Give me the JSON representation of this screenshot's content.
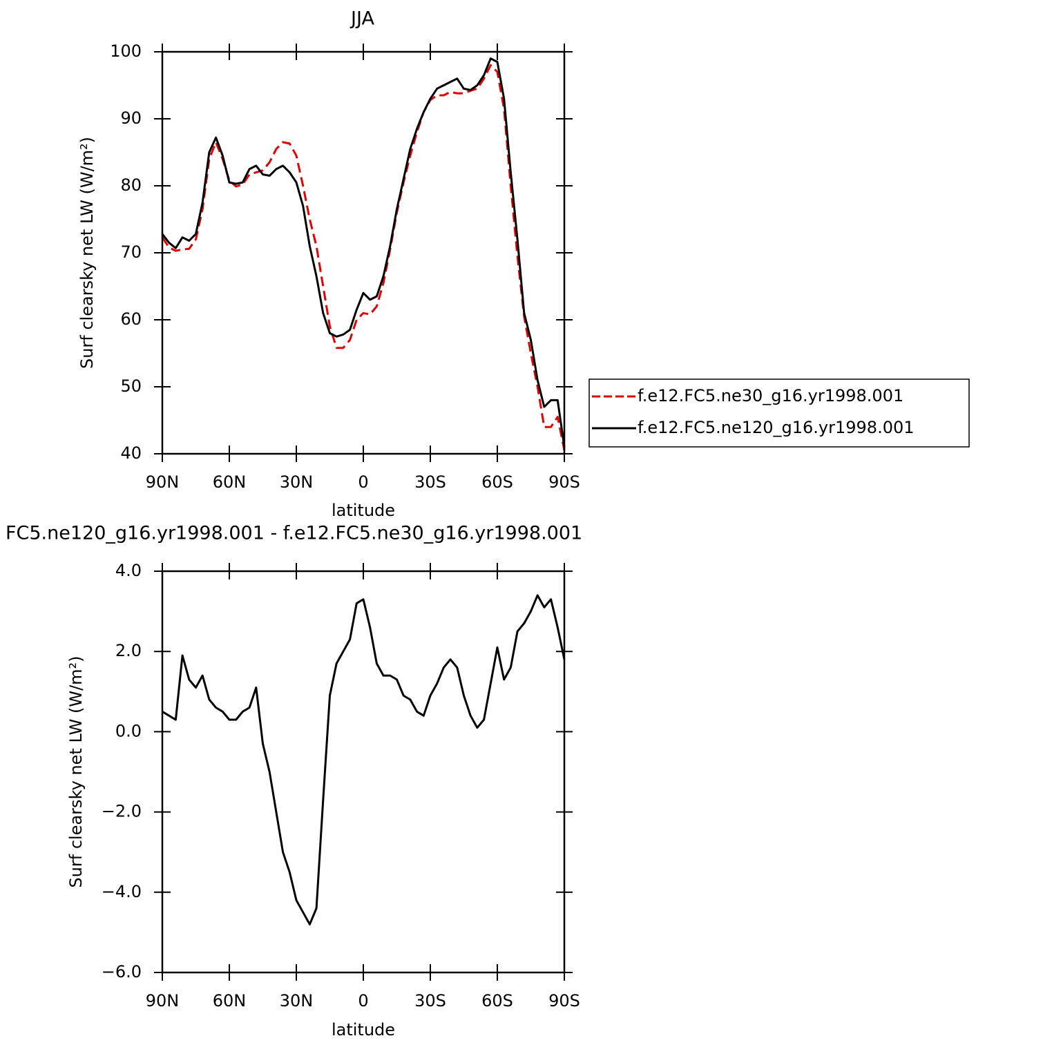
{
  "chart_data": [
    {
      "type": "line",
      "title": "JJA",
      "xlabel": "latitude",
      "ylabel": "Surf clearsky net LW (W/m²)",
      "x": [
        90,
        87,
        84,
        81,
        78,
        75,
        72,
        69,
        66,
        63,
        60,
        57,
        54,
        51,
        48,
        45,
        42,
        39,
        36,
        33,
        30,
        27,
        24,
        21,
        18,
        15,
        12,
        9,
        6,
        3,
        0,
        -3,
        -6,
        -9,
        -12,
        -15,
        -18,
        -21,
        -24,
        -27,
        -30,
        -33,
        -36,
        -39,
        -42,
        -45,
        -48,
        -51,
        -54,
        -57,
        -60,
        -63,
        -66,
        -69,
        -72,
        -75,
        -78,
        -81,
        -84,
        -87,
        -90
      ],
      "xlim": [
        90,
        -90
      ],
      "xticks": [
        {
          "value": 90,
          "label": "90N"
        },
        {
          "value": 60,
          "label": "60N"
        },
        {
          "value": 30,
          "label": "30N"
        },
        0,
        {
          "value": -30,
          "label": "30S"
        },
        {
          "value": -60,
          "label": "60S"
        },
        {
          "value": -90,
          "label": "90S"
        }
      ],
      "ylim": [
        40,
        100
      ],
      "yticks": [
        40,
        50,
        60,
        70,
        80,
        90,
        100
      ],
      "series": [
        {
          "name": "f.e12.FC5.ne30_g16.yr1998.001",
          "color": "#e00000",
          "line_style": "dashed",
          "values": [
            72.3,
            70.8,
            70.3,
            70.5,
            70.6,
            72,
            76.5,
            84,
            86.5,
            84,
            80.8,
            79.9,
            80.2,
            81.7,
            82.0,
            82.3,
            83.5,
            85.5,
            86.5,
            86.3,
            84.5,
            80,
            75,
            71,
            65,
            59,
            55.8,
            55.8,
            57,
            60,
            61,
            60.8,
            62,
            65.5,
            70.5,
            76,
            80.5,
            84.5,
            88,
            91,
            92.8,
            93.5,
            93.5,
            94,
            93.8,
            93.8,
            94.2,
            94.5,
            96,
            98,
            97,
            91.5,
            80,
            69.5,
            60.5,
            55,
            50,
            44,
            44,
            45.5,
            40.5
          ]
        },
        {
          "name": "f.e12.FC5.ne120_g16.yr1998.001",
          "color": "#000000",
          "line_style": "solid",
          "values": [
            72.8,
            71.5,
            70.7,
            72.3,
            71.8,
            72.8,
            77.5,
            85,
            87.2,
            84.5,
            80.5,
            80.3,
            80.5,
            82.5,
            83.0,
            81.7,
            81.5,
            82.5,
            83.0,
            82.0,
            80.5,
            77,
            71,
            66.5,
            61,
            58.0,
            57.5,
            57.8,
            58.5,
            61.5,
            64.0,
            63.0,
            63.5,
            66.5,
            71,
            76.5,
            81,
            85.5,
            88.5,
            91,
            93,
            94.5,
            95.0,
            95.5,
            96.0,
            94.5,
            94.3,
            95.0,
            96.5,
            99.0,
            98.5,
            93,
            82,
            72,
            61,
            57,
            51,
            47,
            48,
            48,
            41
          ]
        }
      ]
    },
    {
      "type": "line",
      "title": "FC5.ne120_g16.yr1998.001 - f.e12.FC5.ne30_g16.yr1998.001",
      "xlabel": "latitude",
      "ylabel": "Surf clearsky net LW (W/m²)",
      "x": [
        90,
        87,
        84,
        81,
        78,
        75,
        72,
        69,
        66,
        63,
        60,
        57,
        54,
        51,
        48,
        45,
        42,
        39,
        36,
        33,
        30,
        27,
        24,
        21,
        18,
        15,
        12,
        9,
        6,
        3,
        0,
        -3,
        -6,
        -9,
        -12,
        -15,
        -18,
        -21,
        -24,
        -27,
        -30,
        -33,
        -36,
        -39,
        -42,
        -45,
        -48,
        -51,
        -54,
        -57,
        -60,
        -63,
        -66,
        -69,
        -72,
        -75,
        -78,
        -81,
        -84,
        -87,
        -90
      ],
      "xlim": [
        90,
        -90
      ],
      "xticks": [
        {
          "value": 90,
          "label": "90N"
        },
        {
          "value": 60,
          "label": "60N"
        },
        {
          "value": 30,
          "label": "30N"
        },
        0,
        {
          "value": -30,
          "label": "30S"
        },
        {
          "value": -60,
          "label": "60S"
        },
        {
          "value": -90,
          "label": "90S"
        }
      ],
      "ylim": [
        -6,
        4
      ],
      "yticks": [
        {
          "value": -6,
          "label": "−6.0"
        },
        {
          "value": -4,
          "label": "−4.0"
        },
        {
          "value": -2,
          "label": "−2.0"
        },
        {
          "value": 0,
          "label": "0.0"
        },
        {
          "value": 2,
          "label": "2.0"
        },
        {
          "value": 4,
          "label": "4.0"
        }
      ],
      "color": "#000000",
      "values": [
        0.5,
        0.4,
        0.3,
        1.9,
        1.3,
        1.1,
        1.4,
        0.8,
        0.6,
        0.5,
        0.3,
        0.3,
        0.5,
        0.6,
        1.1,
        -0.3,
        -1.0,
        -2.0,
        -3.0,
        -3.5,
        -4.2,
        -4.5,
        -4.8,
        -4.4,
        -1.7,
        0.9,
        1.7,
        2.0,
        2.3,
        3.2,
        3.3,
        2.6,
        1.7,
        1.4,
        1.4,
        1.3,
        0.9,
        0.8,
        0.5,
        0.4,
        0.9,
        1.2,
        1.6,
        1.8,
        1.6,
        0.9,
        0.4,
        0.1,
        0.3,
        1.2,
        2.1,
        1.3,
        1.6,
        2.5,
        2.7,
        3.0,
        3.4,
        3.1,
        3.3,
        2.6,
        1.8
      ]
    }
  ]
}
